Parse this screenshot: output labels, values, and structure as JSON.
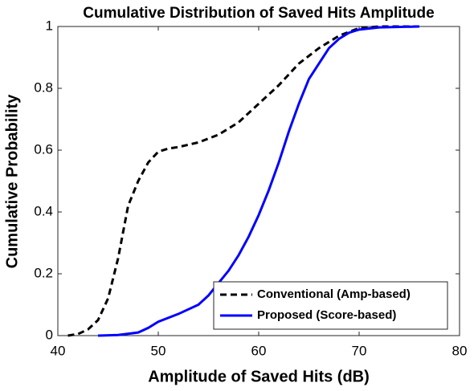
{
  "chart_data": {
    "type": "line",
    "title": "Cumulative Distribution of Saved Hits Amplitude",
    "x_label": "Amplitude of Saved Hits (dB)",
    "y_label": "Cumulative Probability",
    "xlim": [
      40,
      80
    ],
    "xticks": [
      40,
      50,
      60,
      70,
      80
    ],
    "ylim": [
      0,
      1
    ],
    "yticks": [
      0,
      0.2,
      0.4,
      0.6,
      0.8,
      1
    ],
    "grid": false,
    "legend": "lower right",
    "series": [
      {
        "name": "Conventional (Amp-based)",
        "color": "#000000",
        "dash": true,
        "x": [
          41,
          42,
          43,
          44,
          45,
          46,
          47,
          48,
          49,
          50,
          51,
          52,
          54,
          56,
          58,
          60,
          62,
          64,
          66,
          68,
          70,
          72,
          76
        ],
        "values": [
          0,
          0.005,
          0.02,
          0.05,
          0.12,
          0.25,
          0.42,
          0.5,
          0.56,
          0.595,
          0.605,
          0.61,
          0.625,
          0.65,
          0.69,
          0.75,
          0.81,
          0.88,
          0.93,
          0.97,
          0.995,
          1,
          1
        ]
      },
      {
        "name": "Proposed (Score-based)",
        "color": "#0000ff",
        "dash": false,
        "x": [
          44,
          46,
          48,
          49,
          50,
          52,
          54,
          55,
          56,
          57,
          58,
          59,
          60,
          61,
          62,
          63,
          64,
          65,
          66,
          67,
          68,
          69,
          70,
          72,
          76
        ],
        "values": [
          0,
          0.002,
          0.01,
          0.025,
          0.045,
          0.07,
          0.1,
          0.13,
          0.17,
          0.21,
          0.26,
          0.32,
          0.39,
          0.47,
          0.56,
          0.66,
          0.75,
          0.83,
          0.88,
          0.93,
          0.96,
          0.98,
          0.99,
          0.997,
          1
        ]
      }
    ]
  }
}
